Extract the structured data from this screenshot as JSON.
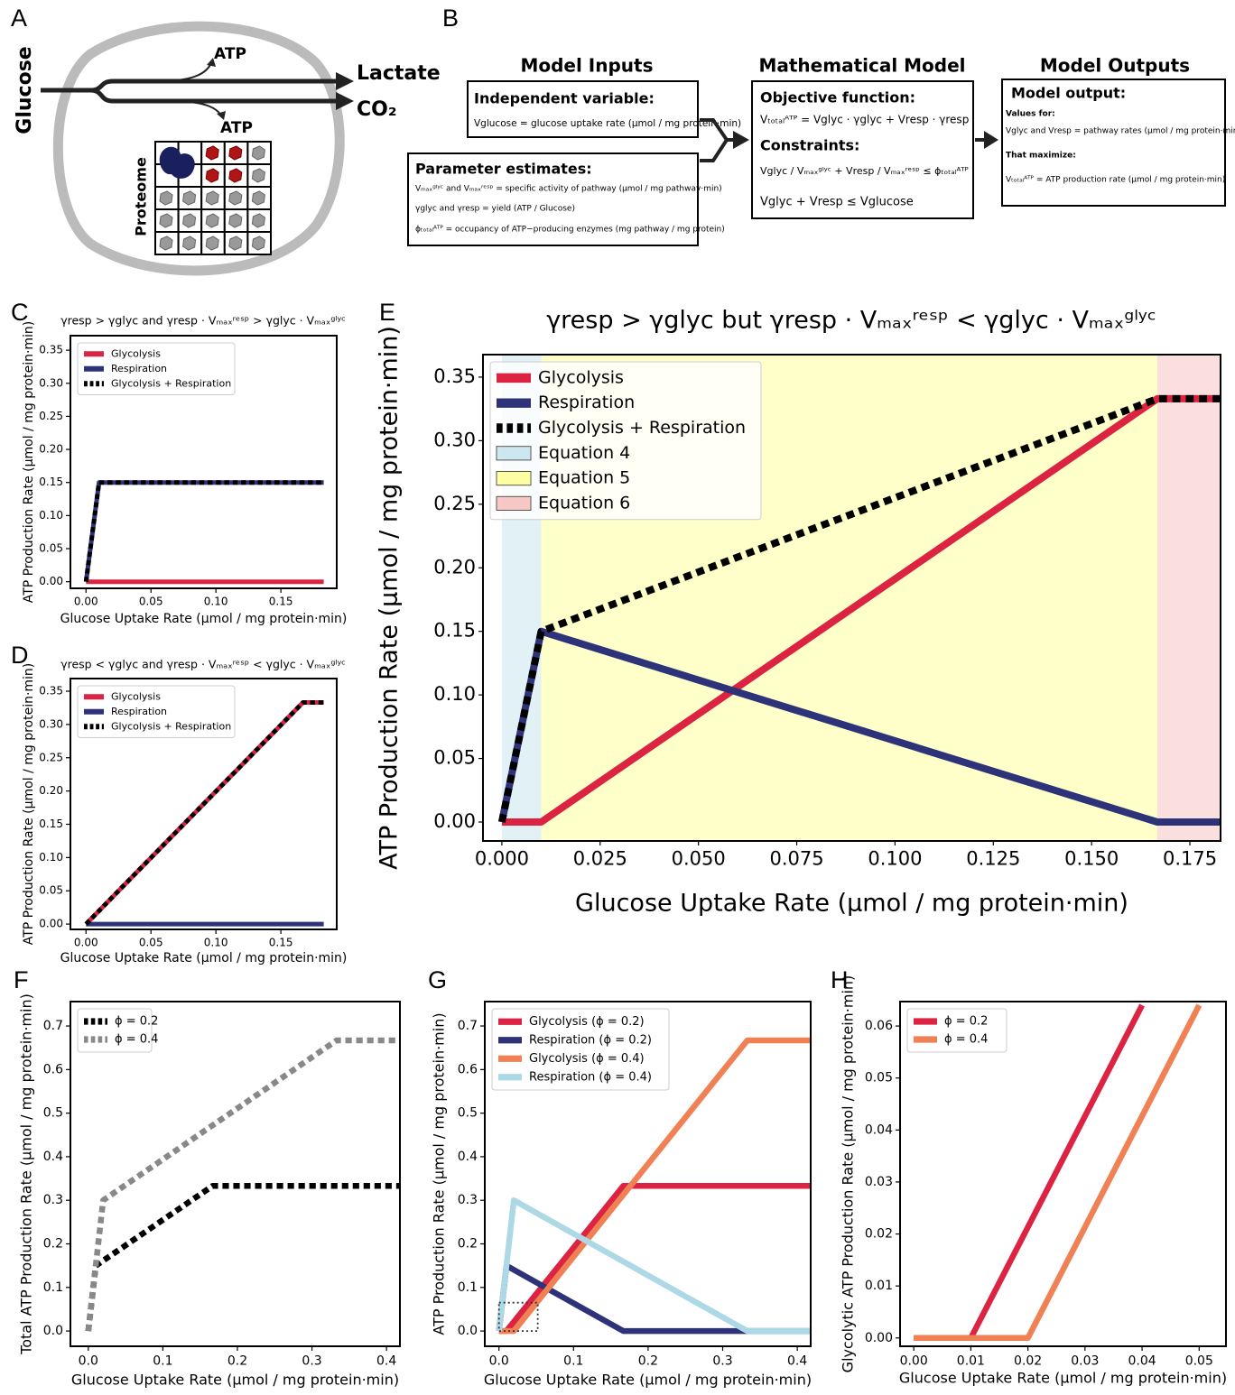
{
  "diagram_a": {
    "panel": "A",
    "glucose": "Glucose",
    "atp_top": "ATP",
    "lactate": "Lactate",
    "atp_bottom": "ATP",
    "co2": "CO₂",
    "proteome": "Proteome"
  },
  "diagram_b": {
    "panel": "B",
    "inputs": {
      "title": "Model Inputs",
      "independent_heading": "Independent variable:",
      "independent_text": "Vglucose = glucose uptake rate (µmol / mg protein·min)",
      "parameter_heading": "Parameter estimates:",
      "parameter_lines": [
        "Vₘₐₓᵍˡʸᶜ and Vₘₐₓʳᵉˢᵖ = specific activity of pathway (µmol / mg pathway·min)",
        "γglyc and γresp = yield (ATP / Glucose)",
        "ϕₜₒₜₐₗᴬᵀᴾ = occupancy of ATP−producing enzymes (mg pathway / mg protein)"
      ]
    },
    "model": {
      "title": "Mathematical Model",
      "objective_heading": "Objective function:",
      "objective": "Vₜₒₜₐₗᴬᵀᴾ = Vglyc · γglyc + Vresp · γresp",
      "constraints_heading": "Constraints:",
      "constraint_1": "Vglyc / Vₘₐₓᵍˡʸᶜ + Vresp / Vₘₐₓʳᵉˢᵖ ≤ ϕₜₒₜₐₗᴬᵀᴾ",
      "constraint_2": "Vglyc + Vresp ≤ Vglucose"
    },
    "outputs": {
      "title": "Model Outputs",
      "heading": "Model output:",
      "values_for": "Values for:",
      "values_text": "Vglyc and Vresp = pathway rates (µmol / mg protein·min)",
      "maximize": "That maximize:",
      "maximize_text": "Vₜₒₜₐₗᴬᵀᴾ = ATP production rate (µmol / mg protein·min)"
    }
  },
  "chart_data": [
    {
      "type": "line",
      "panel": "C",
      "title": "γresp > γglyc and γresp · Vₘₐₓʳᵉˢᵖ > γglyc · Vₘₐₓᵍˡʸᶜ",
      "x_label": "Glucose Uptake Rate (µmol / mg protein·min)",
      "y_label": "ATP Production Rate (µmol / mg protein·min)",
      "xlim": [
        -0.012,
        0.193
      ],
      "ylim": [
        -0.01,
        0.372
      ],
      "xticks": [
        {
          "value": 0,
          "label": "0.00"
        },
        0.05,
        {
          "value": 0.1,
          "label": "0.10"
        },
        0.15
      ],
      "yticks": [
        {
          "value": 0,
          "label": "0.00"
        },
        0.05,
        {
          "value": 0.1,
          "label": "0.10"
        },
        0.15,
        {
          "value": 0.2,
          "label": "0.20"
        },
        0.25,
        {
          "value": 0.3,
          "label": "0.30"
        },
        0.35
      ],
      "legend": "upper left",
      "series": [
        {
          "name": "Glycolysis",
          "color": "#dc2341",
          "dash": false,
          "x": [
            0,
            0.183
          ],
          "values": [
            0,
            0
          ]
        },
        {
          "name": "Respiration",
          "color": "#2e3379",
          "dash": false,
          "x": [
            0,
            0.01,
            0.183
          ],
          "values": [
            0,
            0.15,
            0.15
          ]
        },
        {
          "name": "Glycolysis + Respiration",
          "color": "#000000",
          "dash": true,
          "x": [
            0,
            0.01,
            0.183
          ],
          "values": [
            0,
            0.15,
            0.15
          ]
        }
      ]
    },
    {
      "type": "line",
      "panel": "D",
      "title": "γresp < γglyc and γresp · Vₘₐₓʳᵉˢᵖ < γglyc · Vₘₐₓᵍˡʸᶜ",
      "x_label": "Glucose Uptake Rate (µmol / mg protein·min)",
      "y_label": "ATP Production Rate (µmol / mg protein·min)",
      "xlim": [
        -0.012,
        0.193
      ],
      "ylim": [
        -0.008,
        0.369
      ],
      "xticks": [
        {
          "value": 0,
          "label": "0.00"
        },
        0.05,
        {
          "value": 0.1,
          "label": "0.10"
        },
        0.15
      ],
      "yticks": [
        {
          "value": 0,
          "label": "0.00"
        },
        0.05,
        {
          "value": 0.1,
          "label": "0.10"
        },
        0.15,
        {
          "value": 0.2,
          "label": "0.20"
        },
        0.25,
        {
          "value": 0.3,
          "label": "0.30"
        },
        0.35
      ],
      "legend": "upper left",
      "series": [
        {
          "name": "Glycolysis",
          "color": "#dc2341",
          "dash": false,
          "x": [
            0,
            0.167,
            0.183
          ],
          "values": [
            0,
            0.333,
            0.333
          ]
        },
        {
          "name": "Respiration",
          "color": "#2e3379",
          "dash": false,
          "x": [
            0,
            0.183
          ],
          "values": [
            0,
            0
          ]
        },
        {
          "name": "Glycolysis + Respiration",
          "color": "#000000",
          "dash": true,
          "x": [
            0,
            0.167,
            0.183
          ],
          "values": [
            0,
            0.333,
            0.333
          ]
        }
      ]
    },
    {
      "type": "line",
      "panel": "E",
      "title": "γresp > γglyc but γresp · Vₘₐₓʳᵉˢᵖ < γglyc · Vₘₐₓᵍˡʸᶜ",
      "x_label": "Glucose Uptake Rate (µmol / mg protein·min)",
      "y_label": "ATP Production Rate (µmol / mg protein·min)",
      "xlim": [
        -0.0048,
        0.1828
      ],
      "ylim": [
        -0.0149,
        0.3677
      ],
      "xticks": [
        {
          "value": 0,
          "label": "0.000"
        },
        0.025,
        {
          "value": 0.05,
          "label": "0.050"
        },
        0.075,
        {
          "value": 0.1,
          "label": "0.100"
        },
        0.125,
        {
          "value": 0.15,
          "label": "0.150"
        },
        0.175
      ],
      "yticks": [
        {
          "value": 0,
          "label": "0.00"
        },
        0.05,
        {
          "value": 0.1,
          "label": "0.10"
        },
        0.15,
        {
          "value": 0.2,
          "label": "0.20"
        },
        0.25,
        {
          "value": 0.3,
          "label": "0.30"
        },
        0.35
      ],
      "legend": "upper left",
      "series": [
        {
          "name": "Glycolysis",
          "color": "#dc2341",
          "dash": false,
          "x": [
            0,
            0.01,
            0.1667,
            0.1828
          ],
          "values": [
            0,
            0,
            0.333,
            0.333
          ]
        },
        {
          "name": "Respiration",
          "color": "#2e3379",
          "dash": false,
          "x": [
            0,
            0.01,
            0.1667,
            0.1828
          ],
          "values": [
            0,
            0.15,
            0,
            0
          ]
        },
        {
          "name": "Glycolysis + Respiration",
          "color": "#000000",
          "dash": true,
          "x": [
            0,
            0.01,
            0.1667,
            0.1828
          ],
          "values": [
            0,
            0.15,
            0.333,
            0.333
          ]
        }
      ],
      "regions": [
        {
          "name": "Equation 4",
          "color": "#add8e6",
          "x": [
            0,
            0.01
          ]
        },
        {
          "name": "Equation 5",
          "color": "#ffff66",
          "x": [
            0.01,
            0.1667
          ]
        },
        {
          "name": "Equation 6",
          "color": "#f4a3a0",
          "x": [
            0.1667,
            0.1828
          ]
        }
      ]
    },
    {
      "type": "line",
      "panel": "F",
      "x_label": "Glucose Uptake Rate (µmol / mg protein·min)",
      "y_label": "Total ATP Production Rate (µmol / mg protein·min)",
      "xlim": [
        -0.024,
        0.418
      ],
      "ylim": [
        -0.035,
        0.756
      ],
      "xticks": [
        {
          "value": 0,
          "label": "0.0"
        },
        0.1,
        0.2,
        0.3,
        0.4
      ],
      "yticks": [
        {
          "value": 0,
          "label": "0.0"
        },
        0.1,
        0.2,
        0.3,
        0.4,
        0.5,
        0.6,
        0.7
      ],
      "legend": "upper left",
      "series": [
        {
          "name": "ϕ = 0.2",
          "color": "#000000",
          "dash": true,
          "x": [
            0,
            0.01,
            0.1667,
            0.418
          ],
          "values": [
            0,
            0.15,
            0.333,
            0.333
          ]
        },
        {
          "name": "ϕ = 0.4",
          "color": "#888888",
          "dash": true,
          "x": [
            0,
            0.02,
            0.333,
            0.418
          ],
          "values": [
            0,
            0.3,
            0.667,
            0.667
          ]
        }
      ]
    },
    {
      "type": "line",
      "panel": "G",
      "x_label": "Glucose Uptake Rate (µmol / mg protein·min)",
      "y_label": "ATP Production Rate (µmol / mg protein·min)",
      "xlim": [
        -0.019,
        0.418
      ],
      "ylim": [
        -0.035,
        0.756
      ],
      "xticks": [
        {
          "value": 0,
          "label": "0.0"
        },
        0.1,
        0.2,
        0.3,
        0.4
      ],
      "yticks": [
        {
          "value": 0,
          "label": "0.0"
        },
        0.1,
        0.2,
        0.3,
        0.4,
        0.5,
        0.6,
        0.7
      ],
      "legend": "upper left",
      "series": [
        {
          "name": "Glycolysis (ϕ = 0.2)",
          "color": "#dc2341",
          "dash": false,
          "x": [
            0,
            0.01,
            0.1667,
            0.418
          ],
          "values": [
            0,
            0,
            0.333,
            0.333
          ]
        },
        {
          "name": "Respiration (ϕ = 0.2)",
          "color": "#2e3379",
          "dash": false,
          "x": [
            0,
            0.01,
            0.1667,
            0.418
          ],
          "values": [
            0,
            0.15,
            0,
            0
          ]
        },
        {
          "name": "Glycolysis (ϕ = 0.4)",
          "color": "#f08155",
          "dash": false,
          "x": [
            0,
            0.02,
            0.333,
            0.418
          ],
          "values": [
            0,
            0,
            0.667,
            0.667
          ]
        },
        {
          "name": "Respiration (ϕ = 0.4)",
          "color": "#add8e6",
          "dash": false,
          "x": [
            0,
            0.02,
            0.333,
            0.418
          ],
          "values": [
            0,
            0.3,
            0,
            0
          ]
        }
      ],
      "inset_box": {
        "x": [
          0,
          0.052
        ],
        "y": [
          0,
          0.065
        ]
      }
    },
    {
      "type": "line",
      "panel": "H",
      "x_label": "Glucose Uptake Rate (µmol / mg protein·min)",
      "y_label": "Glycolytic ATP Production Rate (µmol / mg protein·min)",
      "xlim": [
        -0.0024,
        0.0547
      ],
      "ylim": [
        -0.0016,
        0.0647
      ],
      "xticks": [
        {
          "value": 0,
          "label": "0.00"
        },
        0.01,
        0.02,
        0.03,
        0.04,
        0.05
      ],
      "yticks": [
        {
          "value": 0,
          "label": "0.00"
        },
        0.01,
        0.02,
        0.03,
        0.04,
        0.05,
        0.06
      ],
      "legend": "upper left",
      "series": [
        {
          "name": "ϕ = 0.2",
          "color": "#dc2341",
          "dash": false,
          "x": [
            0,
            0.01,
            0.04
          ],
          "values": [
            0,
            0,
            0.064
          ]
        },
        {
          "name": "ϕ = 0.4",
          "color": "#f08155",
          "dash": false,
          "x": [
            0,
            0.02,
            0.05
          ],
          "values": [
            0,
            0,
            0.064
          ]
        }
      ]
    }
  ]
}
